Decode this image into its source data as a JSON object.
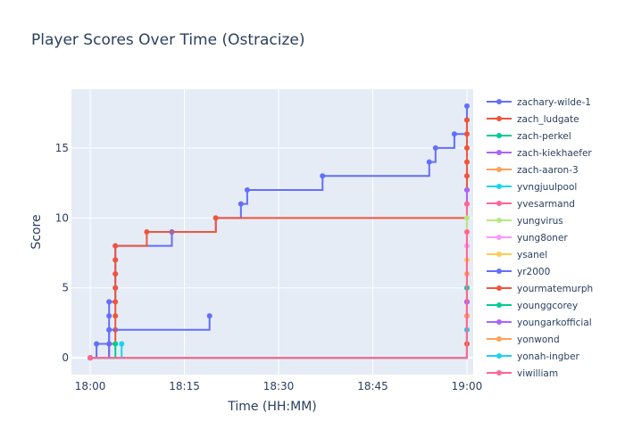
{
  "chart_data": {
    "type": "line",
    "line_shape": "step",
    "title": "Player Scores Over Time (Ostracize)",
    "xlabel": "Time (HH:MM)",
    "ylabel": "Score",
    "x_unit": "time of day",
    "xlim": [
      "17:57",
      "19:00"
    ],
    "ylim": [
      -1.2,
      19.2
    ],
    "x_ticks": [
      "18:00",
      "18:15",
      "18:30",
      "18:45",
      "19:00"
    ],
    "y_ticks": [
      0,
      5,
      10,
      15
    ],
    "grid": true,
    "legend_position": "right",
    "plot_background": "#e5ecf6",
    "series": [
      {
        "name": "zachary-wilde-1",
        "color": "#636efa",
        "points": [
          [
            "18:00",
            0
          ],
          [
            "18:01",
            1
          ],
          [
            "18:03",
            2
          ],
          [
            "18:03",
            3
          ],
          [
            "18:03",
            4
          ],
          [
            "18:04",
            5
          ],
          [
            "18:04",
            6
          ],
          [
            "18:04",
            7
          ],
          [
            "18:04",
            8
          ],
          [
            "18:13",
            9
          ],
          [
            "18:20",
            10
          ],
          [
            "18:24",
            11
          ],
          [
            "18:25",
            12
          ],
          [
            "18:37",
            13
          ],
          [
            "18:54",
            14
          ],
          [
            "18:55",
            15
          ],
          [
            "18:58",
            16
          ],
          [
            "19:00",
            17
          ],
          [
            "19:00",
            18
          ]
        ]
      },
      {
        "name": "zach_ludgate",
        "color": "#ef553b",
        "points": [
          [
            "18:00",
            0
          ],
          [
            "18:03",
            1
          ],
          [
            "18:04",
            2
          ],
          [
            "18:04",
            3
          ],
          [
            "18:04",
            4
          ],
          [
            "18:04",
            5
          ],
          [
            "18:04",
            6
          ],
          [
            "18:04",
            7
          ],
          [
            "18:04",
            8
          ],
          [
            "18:09",
            9
          ],
          [
            "18:20",
            10
          ],
          [
            "19:00",
            11
          ],
          [
            "19:00",
            12
          ],
          [
            "19:00",
            13
          ],
          [
            "19:00",
            14
          ],
          [
            "19:00",
            15
          ],
          [
            "19:00",
            16
          ],
          [
            "19:00",
            17
          ]
        ]
      },
      {
        "name": "zach-perkel",
        "color": "#00cc96",
        "points": [
          [
            "18:00",
            0
          ],
          [
            "18:04",
            1
          ]
        ]
      },
      {
        "name": "zach-kiekhaefer",
        "color": "#ab63fa",
        "points": [
          [
            "18:00",
            0
          ],
          [
            "19:00",
            12
          ]
        ]
      },
      {
        "name": "zach-aaron-3",
        "color": "#ffa15a",
        "points": [
          [
            "18:00",
            0
          ],
          [
            "19:00",
            6
          ]
        ]
      },
      {
        "name": "yvngjuulpool",
        "color": "#19d3f3",
        "points": [
          [
            "18:00",
            0
          ],
          [
            "18:05",
            1
          ]
        ]
      },
      {
        "name": "yvesarmand",
        "color": "#ff6692",
        "points": [
          [
            "18:00",
            0
          ],
          [
            "19:00",
            11
          ]
        ]
      },
      {
        "name": "yungvirus",
        "color": "#b6e880",
        "points": [
          [
            "18:00",
            0
          ],
          [
            "19:00",
            10
          ]
        ]
      },
      {
        "name": "yung8oner",
        "color": "#ff97ff",
        "points": [
          [
            "18:00",
            0
          ],
          [
            "19:00",
            8
          ]
        ]
      },
      {
        "name": "ysanel",
        "color": "#fecb52",
        "points": [
          [
            "18:00",
            0
          ],
          [
            "19:00",
            7
          ]
        ]
      },
      {
        "name": "yr2000",
        "color": "#636efa",
        "points": [
          [
            "18:00",
            0
          ],
          [
            "18:03",
            1
          ],
          [
            "18:03",
            2
          ],
          [
            "18:19",
            3
          ]
        ]
      },
      {
        "name": "yourmatemurph",
        "color": "#ef553b",
        "points": [
          [
            "18:00",
            0
          ],
          [
            "19:00",
            1
          ],
          [
            "19:00",
            2
          ],
          [
            "19:00",
            3
          ],
          [
            "19:00",
            4
          ]
        ]
      },
      {
        "name": "younggcorey",
        "color": "#00cc96",
        "points": [
          [
            "18:00",
            0
          ],
          [
            "19:00",
            5
          ]
        ]
      },
      {
        "name": "youngarkofficial",
        "color": "#ab63fa",
        "points": [
          [
            "18:00",
            0
          ],
          [
            "19:00",
            4
          ]
        ]
      },
      {
        "name": "yonwond",
        "color": "#ffa15a",
        "points": [
          [
            "18:00",
            0
          ],
          [
            "19:00",
            3
          ]
        ]
      },
      {
        "name": "yonah-ingber",
        "color": "#19d3f3",
        "points": [
          [
            "18:00",
            0
          ],
          [
            "19:00",
            2
          ]
        ]
      },
      {
        "name": "yiwilliam",
        "color": "#ff6692",
        "points": [
          [
            "18:00",
            0
          ],
          [
            "19:00",
            9
          ]
        ]
      }
    ]
  }
}
